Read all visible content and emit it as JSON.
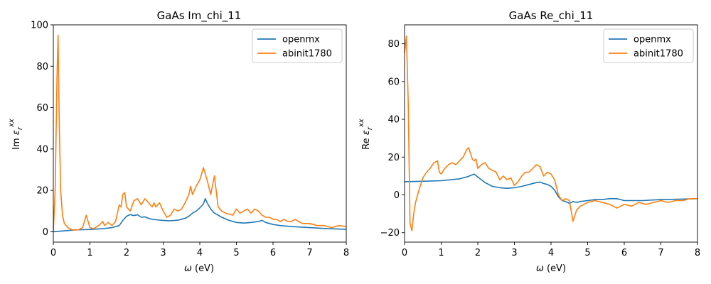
{
  "chart_data": [
    {
      "type": "line",
      "title": "GaAs Im_chi_11",
      "xlabel": "ω (eV)",
      "ylabel": "Im ε_r^xx",
      "xlim": [
        0,
        8
      ],
      "ylim": [
        -5,
        100
      ],
      "xticks": [
        "0",
        "1",
        "2",
        "3",
        "4",
        "5",
        "6",
        "7",
        "8"
      ],
      "yticks": [
        "0",
        "20",
        "40",
        "60",
        "80",
        "100"
      ],
      "legend_position": "upper-right",
      "series": [
        {
          "name": "openmx",
          "color": "#1f77b4",
          "x": [
            0,
            0.2,
            0.4,
            0.6,
            0.8,
            1.0,
            1.2,
            1.4,
            1.6,
            1.8,
            1.9,
            2.0,
            2.1,
            2.2,
            2.3,
            2.4,
            2.5,
            2.6,
            2.7,
            2.8,
            3.0,
            3.2,
            3.4,
            3.6,
            3.7,
            3.8,
            3.9,
            4.0,
            4.1,
            4.15,
            4.2,
            4.3,
            4.4,
            4.5,
            4.6,
            4.8,
            5.0,
            5.2,
            5.4,
            5.6,
            5.7,
            5.8,
            6.0,
            6.2,
            6.5,
            7.0,
            7.5,
            8.0
          ],
          "values": [
            0,
            0.3,
            0.6,
            0.9,
            1.0,
            1.1,
            1.3,
            1.6,
            2.0,
            3.0,
            5.5,
            7.5,
            8.3,
            7.8,
            8.2,
            7.0,
            7.2,
            6.5,
            6.0,
            5.8,
            5.5,
            5.3,
            5.6,
            6.5,
            7.5,
            9.0,
            10.0,
            11.5,
            13.5,
            16.0,
            14.0,
            11.0,
            9.0,
            8.0,
            7.0,
            5.5,
            4.5,
            4.2,
            4.5,
            5.0,
            5.5,
            4.5,
            3.5,
            3.0,
            2.5,
            2.0,
            1.5,
            1.2
          ]
        },
        {
          "name": "abinit1780",
          "color": "#ff7f0e",
          "x": [
            0,
            0.05,
            0.1,
            0.13,
            0.16,
            0.2,
            0.25,
            0.3,
            0.4,
            0.5,
            0.6,
            0.7,
            0.8,
            0.9,
            0.95,
            1.0,
            1.1,
            1.2,
            1.3,
            1.35,
            1.4,
            1.5,
            1.6,
            1.7,
            1.8,
            1.85,
            1.9,
            1.95,
            2.0,
            2.1,
            2.2,
            2.3,
            2.4,
            2.5,
            2.6,
            2.7,
            2.75,
            2.8,
            2.9,
            3.0,
            3.1,
            3.2,
            3.3,
            3.4,
            3.5,
            3.6,
            3.7,
            3.75,
            3.8,
            3.9,
            4.0,
            4.1,
            4.15,
            4.2,
            4.3,
            4.4,
            4.5,
            4.6,
            4.7,
            4.9,
            5.0,
            5.1,
            5.2,
            5.3,
            5.4,
            5.5,
            5.6,
            5.7,
            5.8,
            5.9,
            6.0,
            6.1,
            6.2,
            6.3,
            6.4,
            6.5,
            6.6,
            6.8,
            7.0,
            7.2,
            7.4,
            7.6,
            7.8,
            8.0
          ],
          "values": [
            0,
            20,
            75,
            95,
            55,
            20,
            8,
            4,
            2,
            1,
            0.8,
            1,
            2,
            8,
            5,
            2,
            1.5,
            2.5,
            4,
            5,
            3,
            4.5,
            3,
            5,
            13,
            12,
            18,
            19,
            12,
            10,
            15,
            16,
            13,
            16,
            14,
            12,
            14,
            12,
            14,
            10,
            7,
            8,
            11,
            10,
            11,
            14,
            18,
            22,
            18,
            22,
            25,
            31,
            28,
            25,
            18,
            27,
            12,
            10,
            9,
            8,
            11,
            9,
            10,
            11,
            9,
            11,
            10,
            8,
            7,
            7,
            6,
            6,
            5,
            6,
            5,
            5,
            6,
            4,
            4,
            3,
            3,
            2,
            3,
            2.5
          ]
        }
      ]
    },
    {
      "type": "line",
      "title": "GaAs Re_chi_11",
      "xlabel": "ω (eV)",
      "ylabel": "Re ε_r^xx",
      "xlim": [
        0,
        8
      ],
      "ylim": [
        -25,
        90
      ],
      "xticks": [
        "0",
        "1",
        "2",
        "3",
        "4",
        "5",
        "6",
        "7",
        "8"
      ],
      "yticks": [
        "−20",
        "0",
        "20",
        "40",
        "60",
        "80"
      ],
      "legend_position": "upper-right",
      "series": [
        {
          "name": "openmx",
          "color": "#1f77b4",
          "x": [
            0,
            0.5,
            1.0,
            1.5,
            1.7,
            1.9,
            2.0,
            2.1,
            2.2,
            2.4,
            2.6,
            2.8,
            3.0,
            3.2,
            3.4,
            3.6,
            3.7,
            3.8,
            3.9,
            4.0,
            4.1,
            4.2,
            4.3,
            4.4,
            4.5,
            4.6,
            4.7,
            4.8,
            5.0,
            5.2,
            5.4,
            5.6,
            5.8,
            6.0,
            6.5,
            7.0,
            7.5,
            8.0
          ],
          "values": [
            7,
            7.2,
            7.5,
            8.5,
            9.5,
            11,
            9.5,
            8,
            6.5,
            4.5,
            3.8,
            3.5,
            3.8,
            4.5,
            5.5,
            6.5,
            6.8,
            6.0,
            5.5,
            4.5,
            2.5,
            -1,
            -3,
            -3.5,
            -4.5,
            -3.5,
            -4,
            -3.5,
            -3,
            -2.5,
            -2.5,
            -2,
            -2,
            -3,
            -3,
            -2.5,
            -2.3,
            -2
          ]
        },
        {
          "name": "abinit1780",
          "color": "#ff7f0e",
          "x": [
            0,
            0.05,
            0.1,
            0.13,
            0.15,
            0.2,
            0.25,
            0.3,
            0.4,
            0.5,
            0.6,
            0.7,
            0.8,
            0.9,
            0.95,
            1.0,
            1.1,
            1.2,
            1.3,
            1.4,
            1.5,
            1.6,
            1.7,
            1.75,
            1.8,
            1.85,
            1.9,
            1.95,
            2.0,
            2.1,
            2.2,
            2.3,
            2.4,
            2.5,
            2.6,
            2.7,
            2.8,
            2.9,
            3.0,
            3.1,
            3.2,
            3.3,
            3.4,
            3.5,
            3.6,
            3.7,
            3.8,
            3.9,
            4.0,
            4.1,
            4.2,
            4.3,
            4.4,
            4.5,
            4.6,
            4.7,
            4.8,
            4.9,
            5.0,
            5.2,
            5.4,
            5.6,
            5.8,
            6.0,
            6.2,
            6.4,
            6.6,
            6.8,
            7.0,
            7.2,
            7.4,
            7.6,
            7.8,
            8.0
          ],
          "values": [
            75,
            84,
            50,
            10,
            -15,
            -19,
            -10,
            -4,
            3,
            9,
            12,
            14,
            17,
            18,
            12,
            11,
            14,
            16,
            17,
            16,
            18,
            20,
            24,
            25,
            22,
            19,
            18,
            19,
            14,
            16,
            17,
            14,
            13,
            12,
            8,
            10,
            8,
            9,
            5,
            7,
            10,
            12,
            12,
            14,
            16,
            15,
            10,
            12,
            11,
            8,
            0,
            -3,
            -2,
            -3,
            -14,
            -8,
            -6,
            -5,
            -4,
            -3,
            -4,
            -5,
            -7,
            -5,
            -6,
            -4,
            -5,
            -4,
            -3,
            -4,
            -3,
            -3,
            -2,
            -2
          ]
        }
      ]
    }
  ]
}
